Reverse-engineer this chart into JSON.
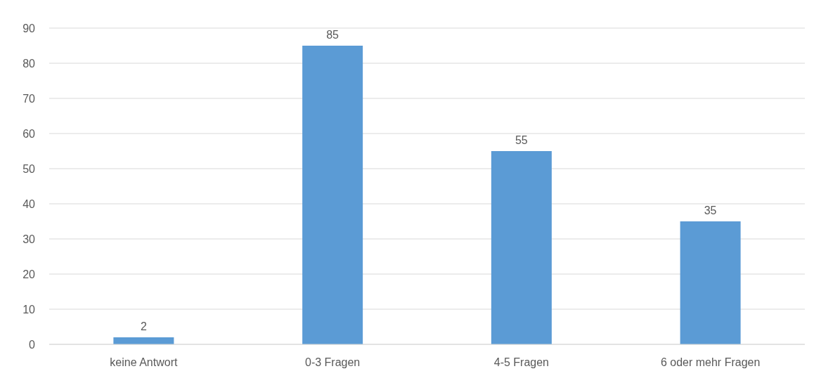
{
  "chart_data": {
    "type": "bar",
    "categories": [
      "keine Antwort",
      "0-3 Fragen",
      "4-5 Fragen",
      "6 oder mehr Fragen"
    ],
    "values": [
      2,
      85,
      55,
      35
    ],
    "color": "#5b9bd5",
    "ylim": [
      0,
      90
    ],
    "yticks": [
      0,
      10,
      20,
      30,
      40,
      50,
      60,
      70,
      80,
      90
    ],
    "grid": "y",
    "data_labels": true
  }
}
